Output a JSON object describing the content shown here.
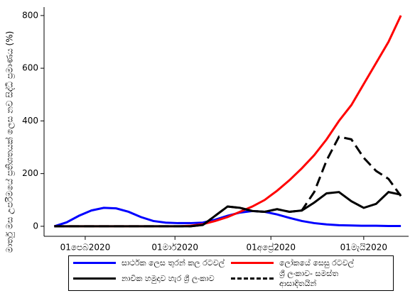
{
  "chart_data": {
    "type": "line",
    "ylabel": "මාර්තු මස උපරිමයේ ප්‍රතිශතයක් ලෙස නව සිද්ධි ප්‍රමාණය (%)",
    "x": [
      21,
      25,
      29,
      33,
      37,
      41,
      45,
      49,
      53,
      57,
      61,
      65,
      69,
      73,
      77,
      81,
      85,
      89,
      93,
      97,
      101,
      105,
      109,
      113,
      117,
      121,
      125,
      129,
      133
    ],
    "xlim": [
      17.7,
      135.5
    ],
    "xticks": [
      {
        "value": 31,
        "label": "01පෙබ2020"
      },
      {
        "value": 60,
        "label": "01මාර්2020"
      },
      {
        "value": 91,
        "label": "01අප්‍රේ2020"
      },
      {
        "value": 121,
        "label": "01මැයි2020"
      }
    ],
    "ylim": [
      -38,
      832
    ],
    "yticks": [
      0,
      200,
      400,
      600,
      800
    ],
    "series": [
      {
        "name": "සාර්ථක ලෙස තුරන් කල රටවල්",
        "color": "#0000ff",
        "dash": false,
        "values": [
          0,
          15,
          40,
          60,
          70,
          68,
          55,
          35,
          20,
          14,
          12,
          12,
          14,
          25,
          40,
          52,
          58,
          55,
          45,
          32,
          20,
          12,
          7,
          4,
          3,
          2,
          2,
          1,
          1
        ]
      },
      {
        "name": "ලෝකයේ සෙසු රටවල්",
        "color": "#ff0000",
        "dash": false,
        "values": [
          0,
          0,
          0,
          0,
          0,
          0,
          0,
          0,
          0,
          0,
          0,
          2,
          8,
          20,
          35,
          55,
          75,
          100,
          135,
          175,
          220,
          270,
          330,
          400,
          460,
          540,
          620,
          700,
          800
        ]
      },
      {
        "name": "නාවික හමුදාව හැර ශ්‍රී ලංකාව",
        "color": "#000000",
        "dash": false,
        "values": [
          0,
          0,
          0,
          0,
          0,
          0,
          0,
          0,
          0,
          0,
          0,
          0,
          5,
          40,
          75,
          70,
          58,
          55,
          65,
          55,
          60,
          90,
          125,
          130,
          95,
          70,
          85,
          130,
          120
        ]
      },
      {
        "name": "ශ්‍රී ලංකාව- සමස්ත ආසාදිතයින්",
        "color": "#000000",
        "dash": true,
        "values": [
          0,
          0,
          0,
          0,
          0,
          0,
          0,
          0,
          0,
          0,
          0,
          0,
          5,
          40,
          75,
          70,
          58,
          55,
          65,
          55,
          60,
          130,
          250,
          340,
          330,
          260,
          210,
          180,
          115
        ]
      }
    ]
  }
}
